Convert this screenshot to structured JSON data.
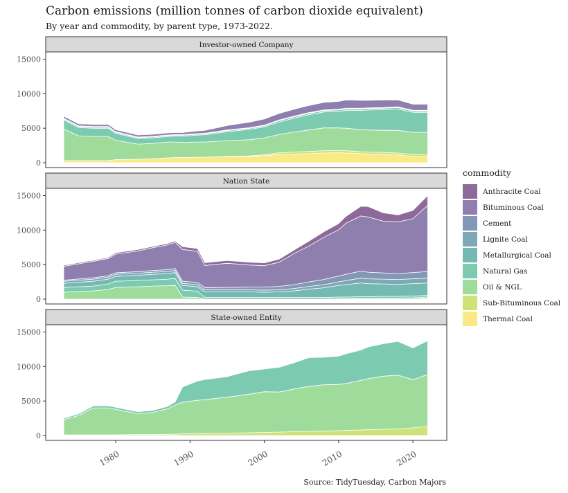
{
  "title": "Carbon emissions (million tonnes of carbon dioxide equivalent)",
  "subtitle": "By year and commodity, by parent type, 1973-2022.",
  "caption": "Source: TidyTuesday, Carbon Majors",
  "legend": {
    "title": "commodity",
    "items": [
      {
        "label": "Anthracite Coal",
        "color": "#8e6a9b"
      },
      {
        "label": "Bituminous Coal",
        "color": "#8f7fae"
      },
      {
        "label": "Cement",
        "color": "#8298b6"
      },
      {
        "label": "Lignite Coal",
        "color": "#7da8b6"
      },
      {
        "label": "Metallurgical Coal",
        "color": "#74bab2"
      },
      {
        "label": "Natural Gas",
        "color": "#7ccab0"
      },
      {
        "label": "Oil & NGL",
        "color": "#9fdc9c"
      },
      {
        "label": "Sub-Bituminous Coal",
        "color": "#cde37a"
      },
      {
        "label": "Thermal Coal",
        "color": "#fbe986"
      }
    ]
  },
  "chart_data": {
    "type": "area",
    "stacked": true,
    "x_ticks": [
      1980,
      1990,
      2000,
      2010,
      2020
    ],
    "y_ticks": [
      0,
      5000,
      10000,
      15000
    ],
    "xlim": [
      1973,
      2022
    ],
    "ylim": [
      0,
      16000
    ],
    "grid": false,
    "legend_position": "right",
    "x": [
      1973,
      1975,
      1977,
      1979,
      1980,
      1983,
      1985,
      1987,
      1988,
      1989,
      1991,
      1992,
      1995,
      1998,
      2000,
      2002,
      2004,
      2006,
      2008,
      2010,
      2011,
      2013,
      2014,
      2016,
      2018,
      2020,
      2022
    ],
    "panels": [
      {
        "strip": "Investor-owned Company",
        "series": [
          {
            "name": "Thermal Coal",
            "values": [
              300,
              300,
              300,
              300,
              450,
              500,
              600,
              700,
              750,
              750,
              800,
              800,
              850,
              900,
              1000,
              1200,
              1250,
              1300,
              1400,
              1450,
              1400,
              1300,
              1250,
              1200,
              1100,
              900,
              900
            ]
          },
          {
            "name": "Sub-Bituminous Coal",
            "values": [
              0,
              0,
              0,
              0,
              0,
              0,
              0,
              0,
              0,
              0,
              0,
              0,
              50,
              80,
              150,
              250,
              300,
              350,
              350,
              350,
              350,
              300,
              300,
              300,
              300,
              300,
              300
            ]
          },
          {
            "name": "Oil & NGL",
            "values": [
              4600,
              3600,
              3500,
              3500,
              2800,
              2200,
              2200,
              2300,
              2250,
              2200,
              2200,
              2200,
              2300,
              2350,
              2450,
              2650,
              2900,
              3100,
              3300,
              3250,
              3250,
              3200,
              3200,
              3200,
              3300,
              3200,
              3200
            ]
          },
          {
            "name": "Natural Gas",
            "values": [
              1300,
              1200,
              1200,
              1200,
              1000,
              800,
              800,
              800,
              850,
              900,
              1000,
              1050,
              1300,
              1500,
              1600,
              1800,
              2000,
              2200,
              2300,
              2400,
              2600,
              2800,
              2900,
              3000,
              3100,
              2900,
              2900
            ]
          },
          {
            "name": "Metallurgical Coal",
            "values": [
              150,
              150,
              150,
              150,
              150,
              120,
              120,
              120,
              120,
              120,
              120,
              120,
              150,
              150,
              150,
              200,
              200,
              200,
              200,
              200,
              200,
              200,
              200,
              200,
              200,
              200,
              200
            ]
          },
          {
            "name": "Lignite Coal",
            "values": [
              50,
              50,
              50,
              50,
              50,
              50,
              50,
              50,
              50,
              50,
              50,
              50,
              50,
              50,
              50,
              50,
              50,
              50,
              50,
              50,
              50,
              50,
              50,
              50,
              50,
              50,
              50
            ]
          },
          {
            "name": "Cement",
            "values": [
              50,
              50,
              50,
              50,
              50,
              50,
              50,
              50,
              50,
              50,
              50,
              50,
              50,
              50,
              50,
              50,
              50,
              50,
              50,
              50,
              50,
              50,
              50,
              50,
              50,
              50,
              50
            ]
          },
          {
            "name": "Bituminous Coal",
            "values": [
              300,
              300,
              300,
              300,
              300,
              300,
              300,
              300,
              300,
              300,
              400,
              430,
              650,
              800,
              900,
              950,
              1000,
              1050,
              1100,
              1150,
              1200,
              1150,
              1100,
              1100,
              1000,
              900,
              900
            ]
          },
          {
            "name": "Anthracite Coal",
            "values": [
              20,
              20,
              20,
              20,
              20,
              20,
              20,
              20,
              20,
              20,
              20,
              20,
              20,
              20,
              20,
              20,
              20,
              20,
              20,
              20,
              20,
              20,
              20,
              20,
              20,
              20,
              20
            ]
          }
        ]
      },
      {
        "strip": "Nation State",
        "series": [
          {
            "name": "Thermal Coal",
            "values": [
              0,
              0,
              0,
              0,
              0,
              0,
              0,
              0,
              0,
              0,
              0,
              0,
              0,
              0,
              0,
              0,
              0,
              0,
              0,
              0,
              0,
              0,
              0,
              0,
              0,
              0,
              0
            ]
          },
          {
            "name": "Sub-Bituminous Coal",
            "values": [
              0,
              0,
              0,
              0,
              0,
              0,
              0,
              0,
              0,
              0,
              0,
              0,
              0,
              0,
              0,
              0,
              0,
              0,
              0,
              0,
              0,
              0,
              0,
              0,
              0,
              0,
              100
            ]
          },
          {
            "name": "Oil & NGL",
            "values": [
              1000,
              1100,
              1200,
              1400,
              1700,
              1800,
              1900,
              1950,
              2000,
              300,
              250,
              0,
              0,
              0,
              0,
              0,
              0,
              0,
              0,
              50,
              50,
              100,
              100,
              150,
              150,
              200,
              200
            ]
          },
          {
            "name": "Natural Gas",
            "values": [
              700,
              700,
              700,
              800,
              900,
              900,
              900,
              950,
              1000,
              1000,
              900,
              250,
              250,
              250,
              250,
              250,
              250,
              250,
              250,
              250,
              250,
              250,
              250,
              250,
              250,
              250,
              250
            ]
          },
          {
            "name": "Metallurgical Coal",
            "values": [
              600,
              650,
              700,
              700,
              700,
              750,
              800,
              800,
              850,
              700,
              650,
              800,
              800,
              800,
              750,
              800,
              950,
              1200,
              1400,
              1700,
              1800,
              2000,
              1900,
              1800,
              1750,
              1800,
              1800
            ]
          },
          {
            "name": "Lignite Coal",
            "values": [
              300,
              300,
              300,
              300,
              300,
              300,
              300,
              300,
              300,
              300,
              300,
              300,
              300,
              300,
              300,
              300,
              350,
              400,
              450,
              500,
              600,
              700,
              700,
              700,
              700,
              700,
              700
            ]
          },
          {
            "name": "Cement",
            "values": [
              150,
              170,
              190,
              200,
              220,
              230,
              250,
              270,
              280,
              300,
              320,
              330,
              350,
              400,
              450,
              500,
              550,
              650,
              750,
              850,
              900,
              1000,
              950,
              900,
              850,
              900,
              950
            ]
          },
          {
            "name": "Bituminous Coal",
            "values": [
              2000,
              2200,
              2400,
              2500,
              2700,
              3000,
              3300,
              3600,
              3800,
              4600,
              4500,
              3200,
              3500,
              3200,
              3100,
              3500,
              4500,
              5200,
              6100,
              6700,
              7400,
              8000,
              8000,
              7500,
              7500,
              7800,
              9600
            ]
          },
          {
            "name": "Anthracite Coal",
            "values": [
              150,
              150,
              150,
              150,
              200,
              200,
              200,
              200,
              200,
              400,
              400,
              400,
              400,
              400,
              400,
              450,
              500,
              700,
              800,
              900,
              1000,
              1400,
              1500,
              1200,
              1000,
              1200,
              1400
            ]
          }
        ]
      },
      {
        "strip": "State-owned Entity",
        "series": [
          {
            "name": "Thermal Coal",
            "values": [
              0,
              0,
              0,
              0,
              0,
              0,
              0,
              0,
              0,
              0,
              0,
              0,
              0,
              0,
              0,
              0,
              0,
              0,
              0,
              0,
              0,
              0,
              0,
              0,
              0,
              0,
              0
            ]
          },
          {
            "name": "Sub-Bituminous Coal",
            "values": [
              100,
              100,
              100,
              100,
              100,
              150,
              150,
              180,
              200,
              250,
              300,
              320,
              350,
              400,
              450,
              500,
              550,
              600,
              650,
              700,
              750,
              800,
              850,
              900,
              950,
              1100,
              1350
            ]
          },
          {
            "name": "Oil & NGL",
            "values": [
              2200,
              2800,
              3900,
              3900,
              3700,
              3000,
              3200,
              3700,
              4200,
              4600,
              4800,
              4900,
              5200,
              5600,
              5900,
              5800,
              6200,
              6500,
              6700,
              6700,
              6800,
              7200,
              7400,
              7700,
              7800,
              7000,
              7500
            ]
          },
          {
            "name": "Natural Gas",
            "values": [
              200,
              250,
              300,
              300,
              300,
              300,
              300,
              350,
              500,
              2200,
              2800,
              2900,
              3000,
              3400,
              3300,
              3600,
              3800,
              4200,
              4000,
              4100,
              4300,
              4400,
              4600,
              4700,
              4900,
              4600,
              4900
            ]
          },
          {
            "name": "Metallurgical Coal",
            "values": [
              50,
              50,
              50,
              50,
              50,
              50,
              50,
              50,
              50,
              50,
              50,
              50,
              50,
              50,
              50,
              50,
              50,
              50,
              50,
              50,
              50,
              50,
              50,
              50,
              50,
              50,
              50
            ]
          }
        ]
      }
    ]
  }
}
